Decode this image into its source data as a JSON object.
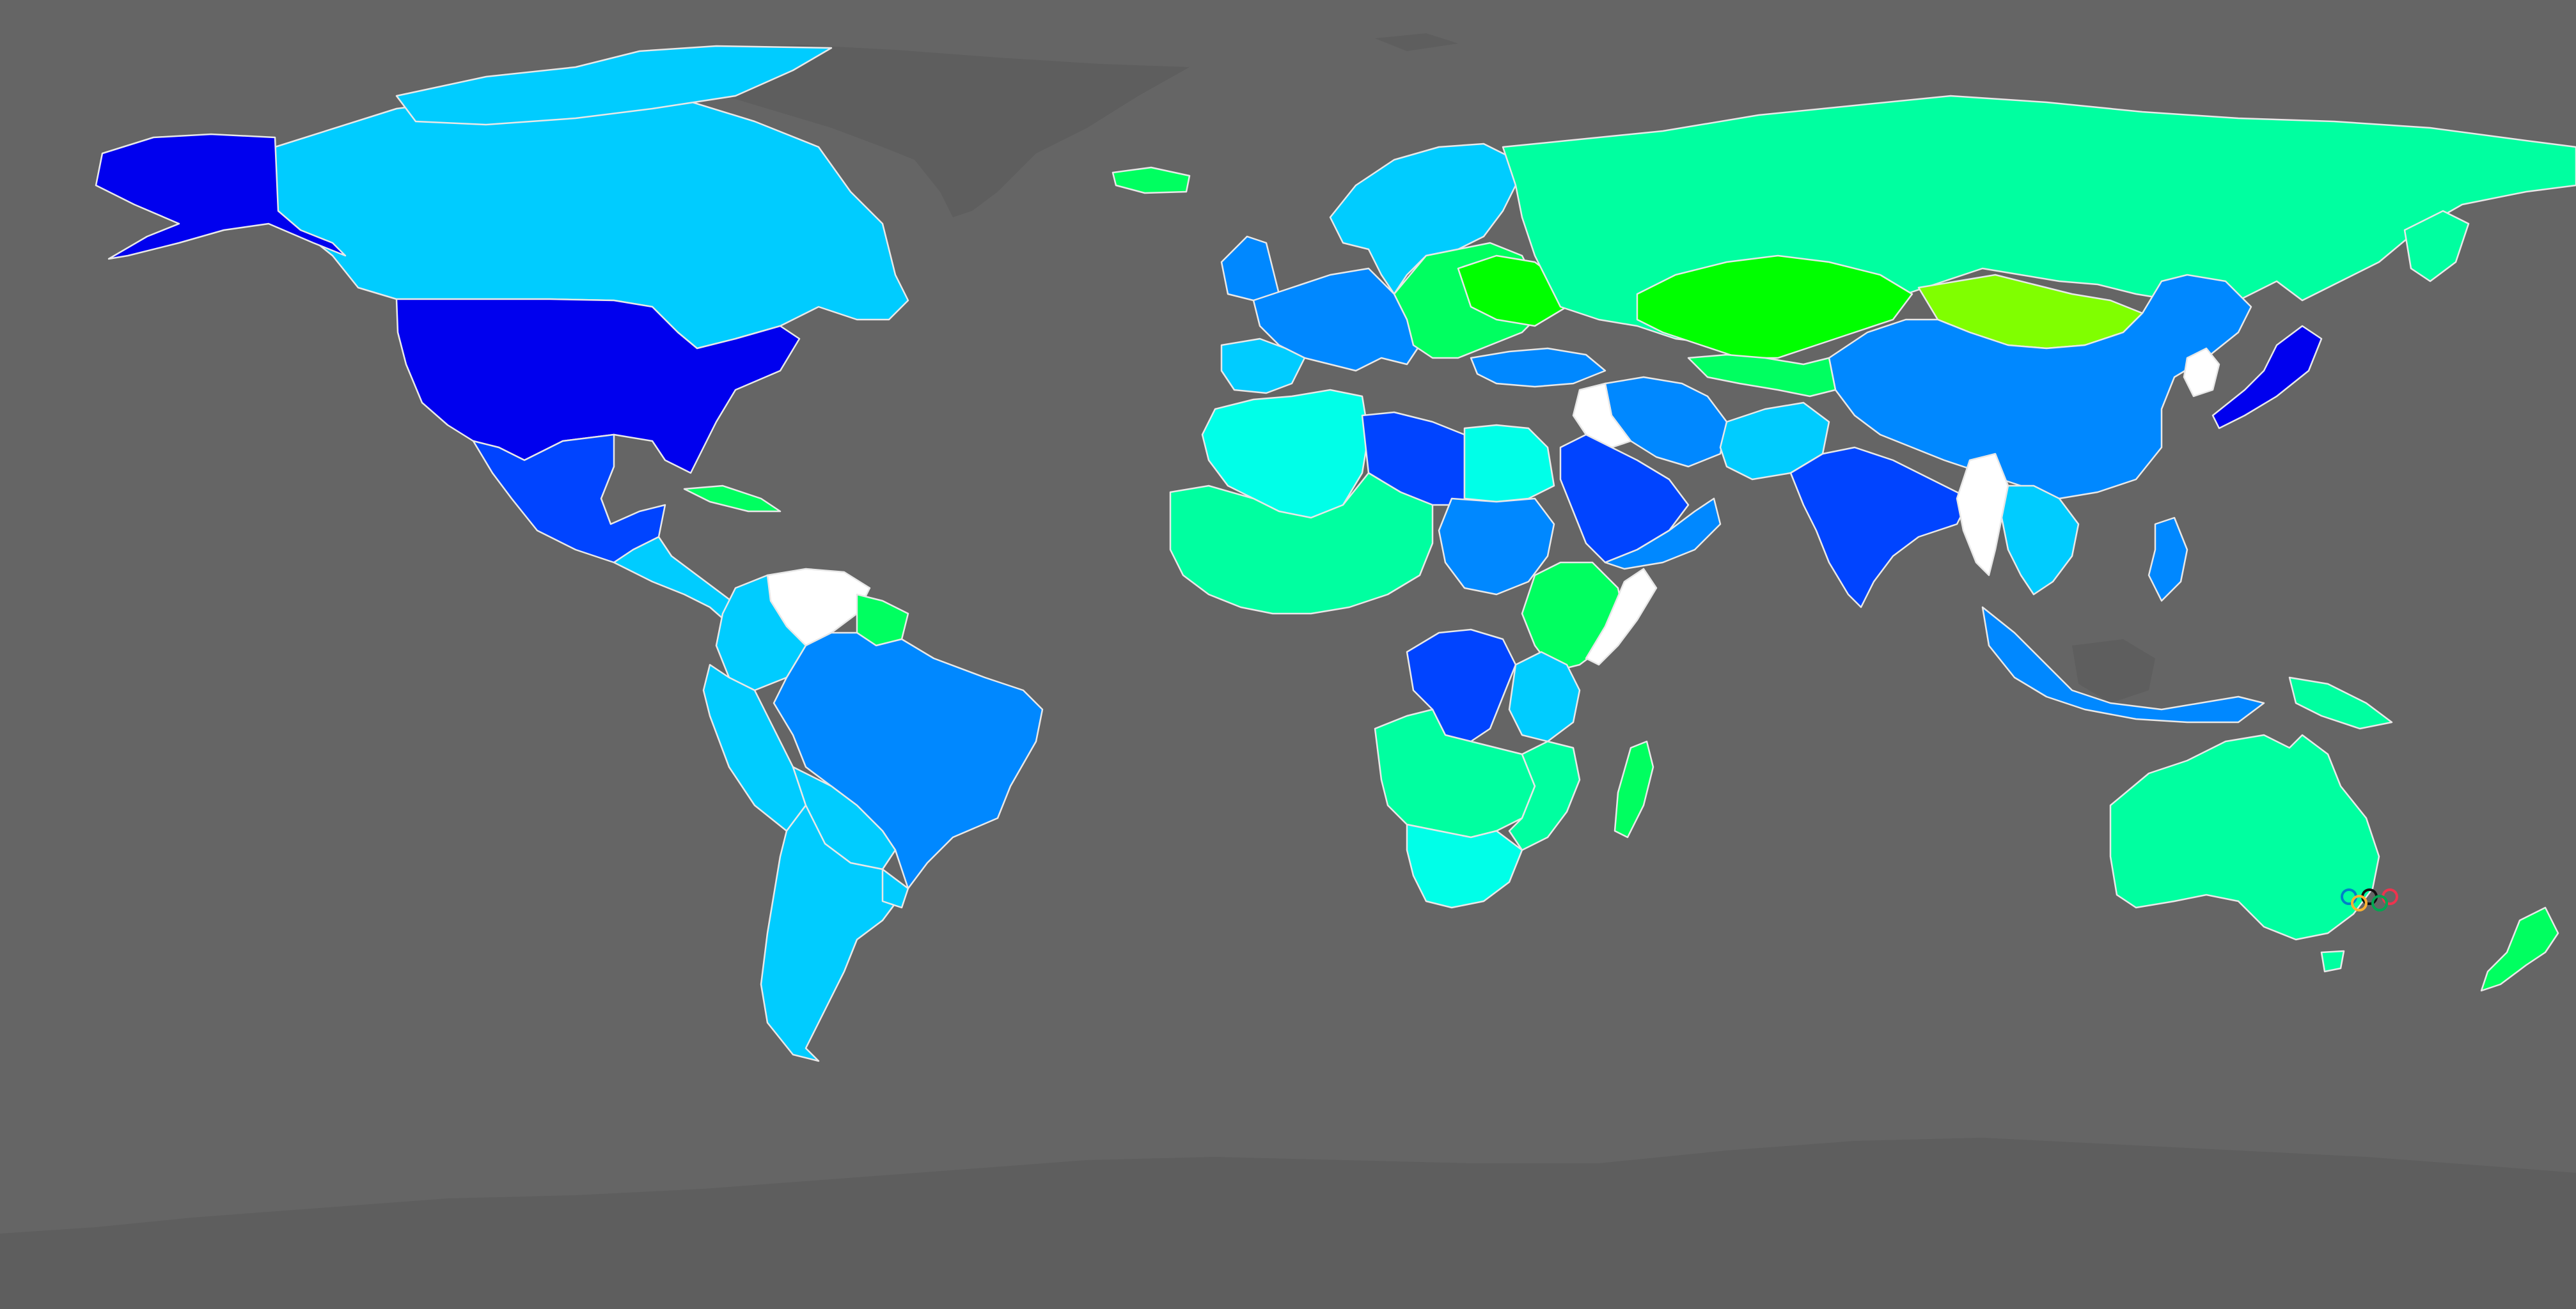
{
  "map": {
    "background_color": "#656565",
    "no_data_land_color": "#5e5e5e",
    "border_color": "#e8e8e8",
    "color_scale": [
      "#0000ee",
      "#0044ff",
      "#0088ff",
      "#00ccff",
      "#00ffe8",
      "#00ffa0",
      "#00ff60",
      "#00ff00",
      "#80ff00",
      "#ffffff"
    ],
    "symbol": {
      "name": "olympic-rings",
      "ring_colors": [
        "#0081c8",
        "#111111",
        "#ee334e",
        "#fcb131",
        "#00a651"
      ]
    },
    "colors": {
      "usa": "#0000ee",
      "alaska": "#0000ee",
      "canada": "#00ccff",
      "mexico": "#0044ff",
      "central_america": "#00ccff",
      "caribbean": "#00ff60",
      "venezuela": "#ffffff",
      "guianas": "#00ff60",
      "brazil": "#0088ff",
      "andean_west": "#00ccff",
      "southern_cone": "#00ccff",
      "iceland": "#00ff60",
      "scandinavia": "#00ccff",
      "western_europe": "#0088ff",
      "uk": "#0088ff",
      "eastern_europe": "#00ff60",
      "russia": "#00ffa0",
      "kazakhstan": "#00ff00",
      "mongolia": "#80ff00",
      "china": "#0088ff",
      "korea": "#ffffff",
      "japan": "#0000ee",
      "india": "#0044ff",
      "myanmar": "#ffffff",
      "southeast_asia": "#00ccff",
      "indonesia": "#0088ff",
      "png": "#00ffa0",
      "middle_east": "#0044ff",
      "iraq": "#ffffff",
      "iran": "#0088ff",
      "north_africa_west": "#00ffe8",
      "libya": "#0044ff",
      "egypt": "#00ffe8",
      "sahel_west": "#00ffa0",
      "sudan": "#0088ff",
      "horn": "#00ff60",
      "somalia": "#ffffff",
      "central_africa": "#0044ff",
      "east_africa": "#00ccff",
      "southern_africa": "#00ffa0",
      "south_africa": "#00ffe8",
      "madagascar": "#00ff60",
      "australia": "#00ffa0",
      "new_zealand": "#00ff60"
    }
  }
}
